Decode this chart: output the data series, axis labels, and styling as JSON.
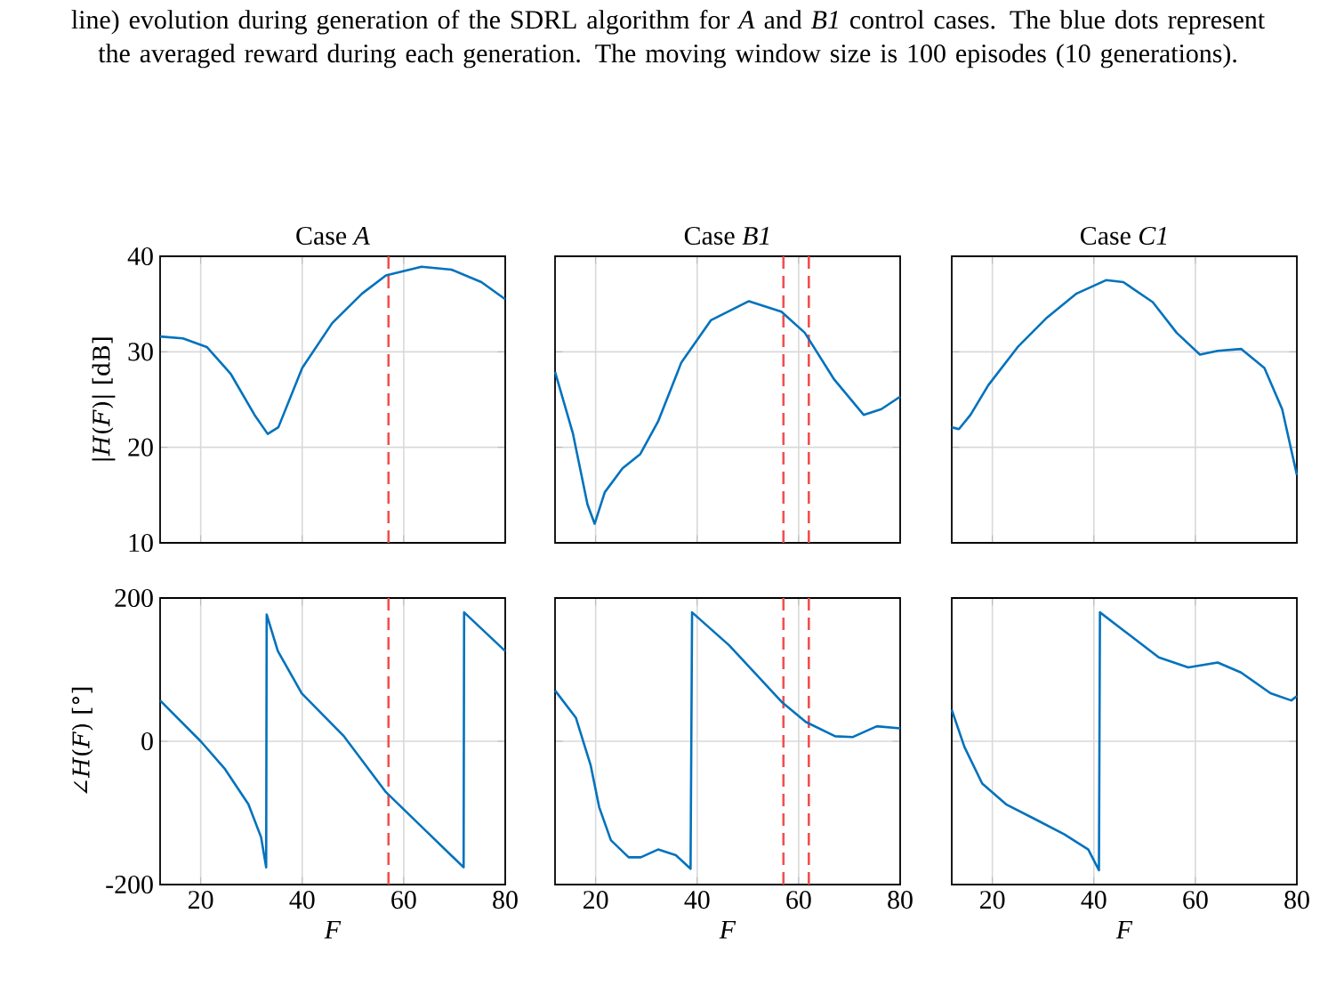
{
  "chart_data": [
    {
      "type": "line",
      "title": "Case *A*",
      "ylabel": "|*H*(*F*)| [dB]",
      "annotations": [
        "line) evolution during generation of the SDRL algorithm for *A* and *B1* control cases. The blue dots represent the averaged reward during each generation. The moving window size is 100 episodes (10 generations)."
      ],
      "x": [
        12,
        16.5,
        21.2,
        25.9,
        30.6,
        33.2,
        35.3,
        40,
        45.9,
        51.8,
        56.5,
        63.5,
        69.4,
        75.3,
        80
      ],
      "series": [
        {
          "color": "#0072bd",
          "values": [
            31.6,
            31.4,
            30.5,
            27.7,
            23.4,
            21.4,
            22.1,
            28.3,
            33,
            36.1,
            38,
            38.9,
            38.6,
            37.3,
            35.5
          ]
        }
      ],
      "xlim": [
        12,
        80
      ],
      "ylim": [
        10,
        40
      ],
      "xticks": [
        20,
        40,
        60,
        80
      ],
      "yticks": [
        10,
        20,
        30,
        40
      ],
      "grid": true,
      "tick_labels": "y",
      "ref_lines": [
        {
          "axis": "x",
          "value": 57,
          "color": "#f0504f",
          "line_style": "dashed"
        }
      ]
    },
    {
      "type": "line",
      "title": "Case *B1*",
      "x": [
        12,
        15.5,
        18.4,
        19.8,
        21.8,
        25.3,
        28.8,
        32.3,
        36.9,
        42.7,
        50.2,
        56.6,
        61.2,
        67,
        72.8,
        76.3,
        80
      ],
      "series": [
        {
          "color": "#0072bd",
          "values": [
            27.9,
            21.5,
            14,
            12,
            15.3,
            17.8,
            19.3,
            22.7,
            28.9,
            33.3,
            35.3,
            34.2,
            32,
            27.1,
            23.4,
            24,
            25.3
          ]
        }
      ],
      "xlim": [
        12,
        80
      ],
      "ylim": [
        10,
        40
      ],
      "xticks": [
        20,
        40,
        60,
        80
      ],
      "yticks": [
        10,
        20,
        30,
        40
      ],
      "grid": true,
      "tick_labels": false,
      "ref_lines": [
        {
          "axis": "x",
          "value": 57,
          "color": "#f0504f",
          "line_style": "dashed"
        },
        {
          "axis": "x",
          "value": 62,
          "color": "#f0504f",
          "line_style": "dashed"
        }
      ]
    },
    {
      "type": "line",
      "title": "Case *C1*",
      "x": [
        12,
        13.4,
        15.7,
        19.2,
        25,
        30.8,
        36.6,
        42.4,
        45.8,
        51.6,
        56.3,
        60.9,
        64.4,
        69,
        73.6,
        77.1,
        80
      ],
      "series": [
        {
          "color": "#0072bd",
          "values": [
            22.1,
            21.9,
            23.4,
            26.5,
            30.5,
            33.6,
            36.1,
            37.5,
            37.3,
            35.2,
            32,
            29.7,
            30.1,
            30.3,
            28.3,
            24,
            17.1
          ]
        }
      ],
      "xlim": [
        12,
        80
      ],
      "ylim": [
        10,
        40
      ],
      "xticks": [
        20,
        40,
        60,
        80
      ],
      "yticks": [
        10,
        20,
        30,
        40
      ],
      "grid": true,
      "tick_labels": false
    },
    {
      "type": "line",
      "xlabel": "*F*",
      "ylabel": "∠*H*(*F*) [°]",
      "x": [
        12,
        20,
        24.7,
        29.4,
        31.9,
        32.9,
        33,
        35.2,
        39.9,
        48.1,
        56.5,
        64.5,
        71.8,
        71.9,
        80
      ],
      "series": [
        {
          "color": "#0072bd",
          "values": [
            57,
            0,
            -38,
            -88,
            -134,
            -176,
            177,
            126,
            67,
            8,
            -71,
            -126,
            -176,
            180,
            126
          ]
        }
      ],
      "xlim": [
        12,
        80
      ],
      "ylim": [
        -200,
        200
      ],
      "xticks": [
        20,
        40,
        60,
        80
      ],
      "yticks": [
        -200,
        0,
        200
      ],
      "grid": true,
      "ref_lines": [
        {
          "axis": "x",
          "value": 57,
          "color": "#f0504f",
          "line_style": "dashed"
        }
      ]
    },
    {
      "type": "line",
      "xlabel": "*F*",
      "x": [
        12,
        16.1,
        19,
        20.7,
        23,
        26.5,
        28.9,
        32.3,
        35.8,
        38.7,
        39,
        46.3,
        56.8,
        61.4,
        67.2,
        70.7,
        75.4,
        80
      ],
      "series": [
        {
          "color": "#0072bd",
          "values": [
            71,
            33,
            -33,
            -92,
            -138,
            -162,
            -162,
            -151,
            -159,
            -178,
            180,
            134,
            54,
            27,
            7,
            6,
            21,
            18
          ]
        }
      ],
      "xlim": [
        12,
        80
      ],
      "ylim": [
        -200,
        200
      ],
      "xticks": [
        20,
        40,
        60,
        80
      ],
      "yticks": [
        -200,
        0,
        200
      ],
      "grid": true,
      "tick_labels": "x",
      "ref_lines": [
        {
          "axis": "x",
          "value": 57,
          "color": "#f0504f",
          "line_style": "dashed"
        },
        {
          "axis": "x",
          "value": 62,
          "color": "#f0504f",
          "line_style": "dashed"
        }
      ]
    },
    {
      "type": "line",
      "xlabel": "*F*",
      "x": [
        12,
        14.5,
        18,
        22.7,
        28.5,
        34.2,
        38.9,
        41,
        41.2,
        45.8,
        52.8,
        58.6,
        64.4,
        69,
        74.8,
        78.9,
        80
      ],
      "series": [
        {
          "color": "#0072bd",
          "values": [
            44,
            -8,
            -59,
            -88,
            -109,
            -130,
            -151,
            -180,
            180,
            155,
            117,
            103,
            110,
            96,
            67,
            57,
            63
          ]
        }
      ],
      "xlim": [
        12,
        80
      ],
      "ylim": [
        -200,
        200
      ],
      "xticks": [
        20,
        40,
        60,
        80
      ],
      "yticks": [
        -200,
        0,
        200
      ],
      "grid": true,
      "tick_labels": "x"
    }
  ]
}
